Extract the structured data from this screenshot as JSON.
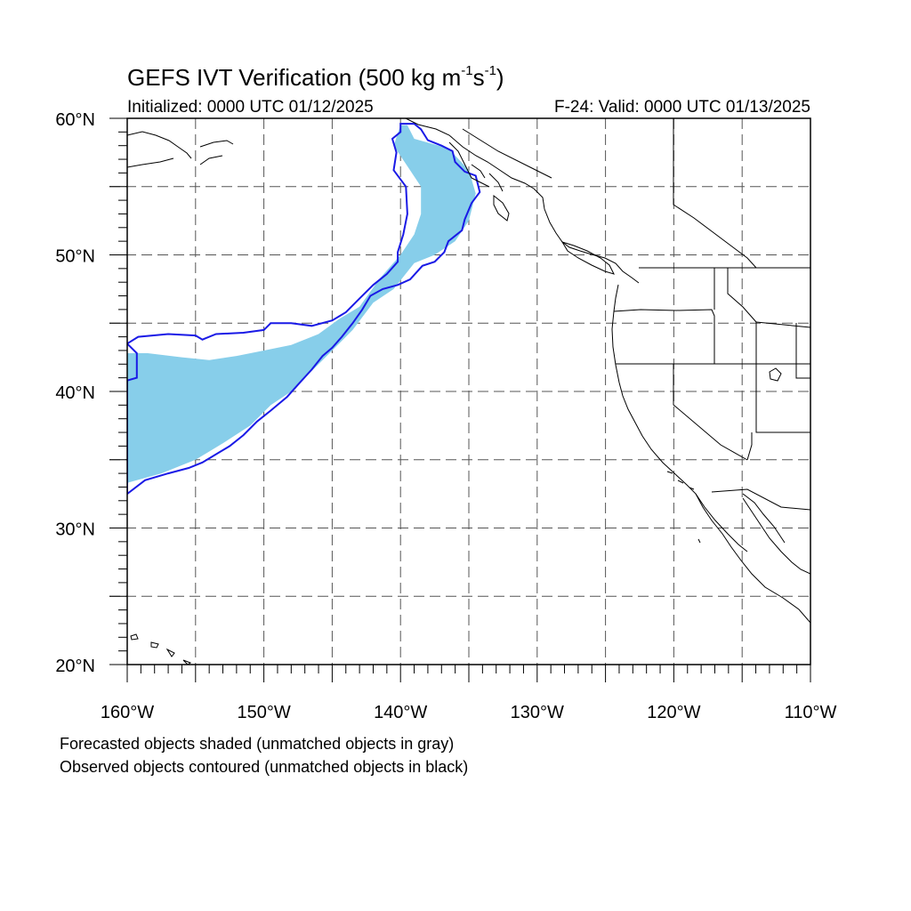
{
  "title": {
    "main": "GEFS IVT Verification (500 kg m",
    "exp1": "-1",
    "mid": "s",
    "exp2": "-1",
    "end": ")"
  },
  "init_label": "Initialized: 0000 UTC 01/12/2025",
  "valid_label": "F-24: Valid: 0000 UTC 01/13/2025",
  "notes": [
    "Forecasted objects shaded (unmatched objects in gray)",
    "Observed objects contoured (unmatched objects in black)"
  ],
  "map": {
    "lon_range": [
      -160,
      -110
    ],
    "lat_range": [
      20,
      60
    ],
    "lon_ticks": [
      {
        "value": -160,
        "label": "160°W"
      },
      {
        "value": -150,
        "label": "150°W"
      },
      {
        "value": -140,
        "label": "140°W"
      },
      {
        "value": -130,
        "label": "130°W"
      },
      {
        "value": -120,
        "label": "120°W"
      },
      {
        "value": -110,
        "label": "110°W"
      }
    ],
    "lat_ticks": [
      {
        "value": 60,
        "label": "60°N"
      },
      {
        "value": 50,
        "label": "50°N"
      },
      {
        "value": 40,
        "label": "40°N"
      },
      {
        "value": 30,
        "label": "30°N"
      },
      {
        "value": 20,
        "label": "20°N"
      }
    ],
    "gridlines": "dashed every 5°",
    "colors": {
      "forecast_fill": "#87ceea",
      "observed_contour": "#1a1ae6",
      "coastline": "#000000",
      "grid": "#555555"
    },
    "forecast_object": {
      "matched": true,
      "outline_lonlat": [
        [
          -140,
          59.5
        ],
        [
          -139.5,
          59.5
        ],
        [
          -139,
          58.5
        ],
        [
          -136.5,
          57.8
        ],
        [
          -135,
          56.2
        ],
        [
          -134.5,
          54.5
        ],
        [
          -135,
          52.5
        ],
        [
          -136,
          51
        ],
        [
          -137.5,
          50
        ],
        [
          -139,
          49.4
        ],
        [
          -140.5,
          47.5
        ],
        [
          -142,
          46.5
        ],
        [
          -143.5,
          44.5
        ],
        [
          -145,
          43
        ],
        [
          -146.5,
          41.5
        ],
        [
          -148,
          40
        ],
        [
          -149.5,
          39
        ],
        [
          -151,
          37.5
        ],
        [
          -153,
          36.2
        ],
        [
          -155,
          35
        ],
        [
          -157.5,
          34
        ],
        [
          -160,
          33.3
        ],
        [
          -160,
          42.8
        ],
        [
          -158.5,
          42.8
        ],
        [
          -156,
          42.5
        ],
        [
          -154,
          42.3
        ],
        [
          -152,
          42.6
        ],
        [
          -150,
          43
        ],
        [
          -148,
          43.4
        ],
        [
          -146,
          44.2
        ],
        [
          -144.5,
          45.3
        ],
        [
          -143,
          46.2
        ],
        [
          -141.5,
          48.3
        ],
        [
          -140,
          50
        ],
        [
          -139,
          51.5
        ],
        [
          -138.5,
          53
        ],
        [
          -138.5,
          55
        ],
        [
          -139.5,
          56.5
        ],
        [
          -140.5,
          58
        ]
      ]
    },
    "observed_object": {
      "matched": true,
      "outline_lonlat": [
        [
          -140,
          59.6
        ],
        [
          -139,
          59.6
        ],
        [
          -138.5,
          59.2
        ],
        [
          -138,
          58.4
        ],
        [
          -137,
          58
        ],
        [
          -136.2,
          57.6
        ],
        [
          -136,
          56.8
        ],
        [
          -135.3,
          56.1
        ],
        [
          -134.5,
          55.8
        ],
        [
          -134.2,
          54.6
        ],
        [
          -134.8,
          53.8
        ],
        [
          -135.3,
          52.6
        ],
        [
          -135.5,
          51.8
        ],
        [
          -136.5,
          51
        ],
        [
          -136.8,
          50.2
        ],
        [
          -137.5,
          49.5
        ],
        [
          -138.4,
          49.2
        ],
        [
          -139.3,
          48.2
        ],
        [
          -140.2,
          47.8
        ],
        [
          -141.3,
          47.5
        ],
        [
          -142.2,
          47
        ],
        [
          -142.8,
          46
        ],
        [
          -143.5,
          45
        ],
        [
          -144.3,
          44
        ],
        [
          -145,
          43.2
        ],
        [
          -145.7,
          42.6
        ],
        [
          -146.5,
          41.6
        ],
        [
          -147.5,
          40.5
        ],
        [
          -148.3,
          39.6
        ],
        [
          -149.5,
          38.6
        ],
        [
          -150.5,
          37.8
        ],
        [
          -151.5,
          36.8
        ],
        [
          -152.5,
          36
        ],
        [
          -153.5,
          35.4
        ],
        [
          -154.5,
          34.8
        ],
        [
          -155.5,
          34.4
        ],
        [
          -157,
          34
        ],
        [
          -158.7,
          33.5
        ],
        [
          -160,
          32.5
        ],
        [
          -160,
          40.8
        ],
        [
          -159.3,
          41
        ],
        [
          -159.3,
          42.8
        ],
        [
          -160,
          43.5
        ],
        [
          -159.2,
          44
        ],
        [
          -157,
          44.2
        ],
        [
          -155,
          44.1
        ],
        [
          -154.5,
          43.8
        ],
        [
          -153.5,
          44.2
        ],
        [
          -151.5,
          44.3
        ],
        [
          -150,
          44.5
        ],
        [
          -149.5,
          45
        ],
        [
          -148,
          45
        ],
        [
          -146.5,
          44.8
        ],
        [
          -145,
          45.2
        ],
        [
          -144,
          45.8
        ],
        [
          -143,
          46.8
        ],
        [
          -142,
          47.8
        ],
        [
          -141,
          48.6
        ],
        [
          -140.2,
          49.5
        ],
        [
          -140.2,
          50.2
        ],
        [
          -139.8,
          51.5
        ],
        [
          -139.5,
          53
        ],
        [
          -139.6,
          55
        ],
        [
          -140.5,
          56.2
        ],
        [
          -140.3,
          57.5
        ],
        [
          -140.6,
          58.5
        ],
        [
          -140,
          59
        ]
      ]
    }
  }
}
